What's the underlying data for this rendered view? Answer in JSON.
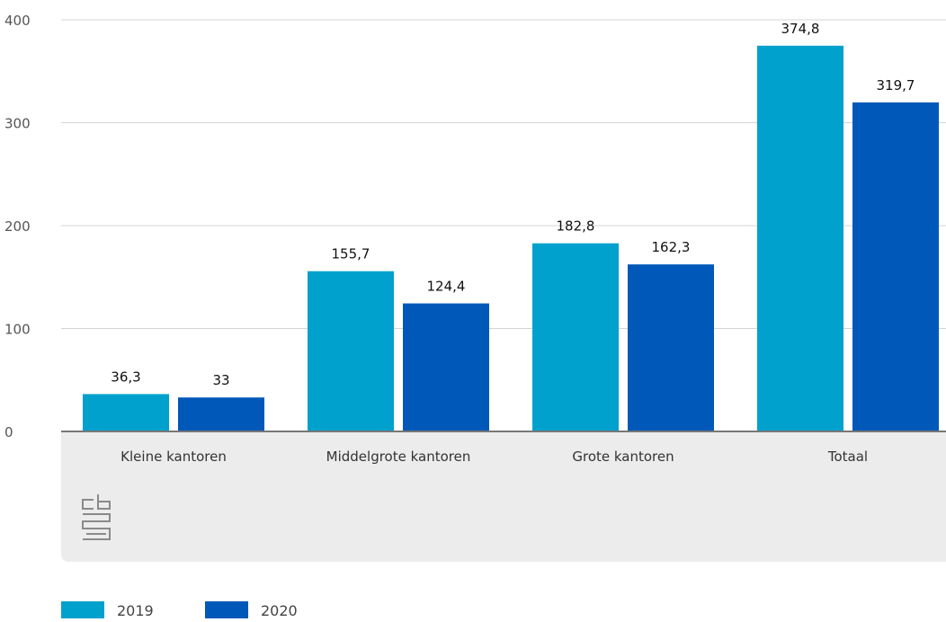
{
  "chart_data": {
    "type": "bar",
    "categories": [
      "Kleine kantoren",
      "Middelgrote kantoren",
      "Grote kantoren",
      "Totaal"
    ],
    "series": [
      {
        "name": "2019",
        "color": "#00a1cd",
        "values": [
          36.3,
          155.7,
          182.8,
          374.8
        ],
        "labels": [
          "36,3",
          "155,7",
          "182,8",
          "374,8"
        ]
      },
      {
        "name": "2020",
        "color": "#0058b8",
        "values": [
          33,
          124.4,
          162.3,
          319.7
        ],
        "labels": [
          "33",
          "124,4",
          "162,3",
          "319,7"
        ]
      }
    ],
    "yticks": [
      0,
      100,
      200,
      300,
      400
    ],
    "ylim": [
      0,
      400
    ],
    "grid": true,
    "legend_position": "bottom-left",
    "logo_text": "cbs"
  }
}
